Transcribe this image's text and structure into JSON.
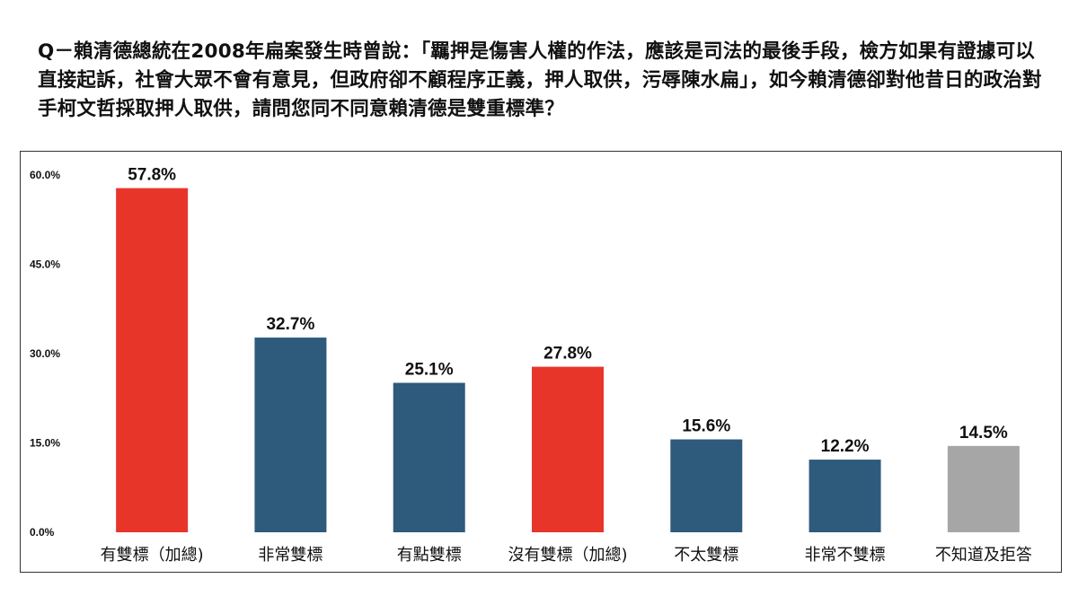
{
  "question": "Q－賴清德總統在2008年扁案發生時曾說：「羈押是傷害人權的作法，應該是司法的最後手段，檢方如果有證據可以直接起訴，社會大眾不會有意見，但政府卻不顧程序正義，押人取供，污辱陳水扁」，如今賴清德卻對他昔日的政治對手柯文哲採取押人取供，請問您同不同意賴清德是雙重標準？",
  "colors": {
    "red": "#e8352a",
    "blue": "#2e5a7c",
    "gray": "#a6a6a6"
  },
  "chart_data": {
    "type": "bar",
    "title": "",
    "xlabel": "",
    "ylabel": "",
    "ylim": [
      0,
      60
    ],
    "yticks": [
      "0.0%",
      "15.0%",
      "30.0%",
      "45.0%",
      "60.0%"
    ],
    "ytick_values": [
      0,
      15,
      30,
      45,
      60
    ],
    "grid": false,
    "categories": [
      "有雙標（加總)",
      "非常雙標",
      "有點雙標",
      "沒有雙標（加總)",
      "不太雙標",
      "非常不雙標",
      "不知道及拒答"
    ],
    "values": [
      57.8,
      32.7,
      25.1,
      27.8,
      15.6,
      12.2,
      14.5
    ],
    "value_labels": [
      "57.8%",
      "32.7%",
      "25.1%",
      "27.8%",
      "15.6%",
      "12.2%",
      "14.5%"
    ],
    "bar_colors": [
      "red",
      "blue",
      "blue",
      "red",
      "blue",
      "blue",
      "gray"
    ]
  }
}
